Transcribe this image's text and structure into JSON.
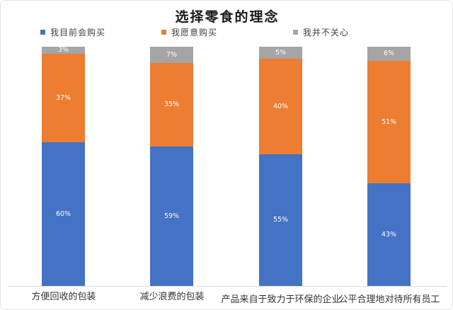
{
  "title": "选择零食的理念",
  "legend": [
    {
      "label": "我目前会购买",
      "color": "#4472C4"
    },
    {
      "label": "我愿意购买",
      "color": "#ED7D31"
    },
    {
      "label": "我并不关心",
      "color": "#A5A5A5"
    }
  ],
  "chart_data": {
    "type": "bar",
    "stacked": true,
    "percent_stacked": true,
    "title": "选择零食的理念",
    "categories": [
      "方便回收的包装",
      "减少浪费的包装",
      "产品来自于致力于环保的企业",
      "公平合理地对待所有员工"
    ],
    "series": [
      {
        "name": "我目前会购买",
        "color": "#4472C4",
        "values": [
          60,
          59,
          55,
          43
        ]
      },
      {
        "name": "我愿意购买",
        "color": "#ED7D31",
        "values": [
          37,
          35,
          40,
          51
        ]
      },
      {
        "name": "我并不关心",
        "color": "#A5A5A5",
        "values": [
          3,
          7,
          5,
          6
        ]
      }
    ],
    "data_labels": [
      [
        "60%",
        "37%",
        "3%"
      ],
      [
        "59%",
        "35%",
        "7%"
      ],
      [
        "55%",
        "40%",
        "5%"
      ],
      [
        "43%",
        "51%",
        "6%"
      ]
    ],
    "unit": "%",
    "ylim": [
      0,
      100
    ],
    "grid": false,
    "legend_position": "top",
    "axis_color": "#D9D9D9"
  }
}
